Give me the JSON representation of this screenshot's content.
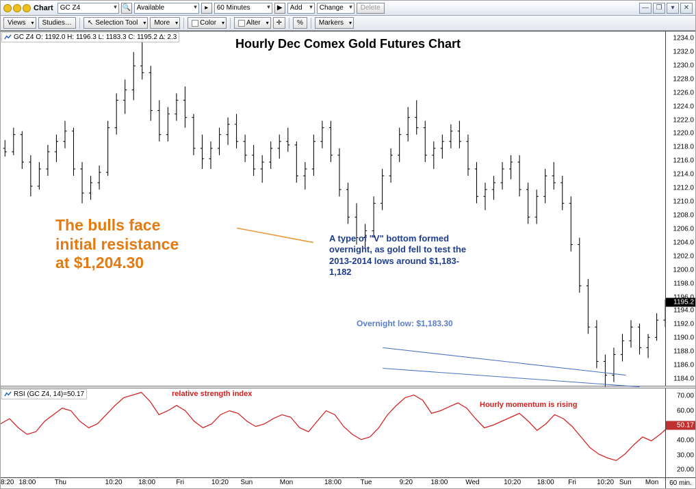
{
  "titlebar": {
    "label": "Chart",
    "symbol": "GC Z4",
    "availability": "Available",
    "interval": "60 Minutes",
    "add": "Add",
    "change": "Change",
    "delete": "Delete"
  },
  "toolbar": {
    "views": "Views",
    "studies": "Studies…",
    "selection": "Selection Tool",
    "more": "More",
    "color": "Color",
    "alter": "Alter",
    "percent": "%",
    "markers": "Markers"
  },
  "main_head": "GC Z4   O: 1192.0   H: 1196.3   L: 1183.3   C: 1195.2   ∆: 2.3",
  "rsi_head": "RSI (GC Z4, 14)=50.17",
  "chart_title": "Hourly Dec Comex Gold Futures Chart",
  "annotations": {
    "orange": "The bulls face\ninitial resistance\nat $1,204.30",
    "blue": "A type of \"V\" bottom formed\novernight, as gold fell to test the\n2013-2014 lows around $1,183-\n1,182",
    "blue2": "Overnight low: $1,183.30",
    "rsi1": "relative strength index",
    "rsi2": "Hourly momentum is rising"
  },
  "colors": {
    "bar": "#000000",
    "rsi_line": "#d42020",
    "anno_orange": "#e37a12",
    "anno_blue": "#1f3d8f",
    "trend_line": "#4a6fc4",
    "orange_line": "#e89a3a"
  },
  "main_chart": {
    "y_min": 1183.0,
    "y_max": 1235.0,
    "yticks": [
      1184.0,
      1186.0,
      1188.0,
      1190.0,
      1192.0,
      1194.0,
      1196.0,
      1198.0,
      1200.0,
      1202.0,
      1204.0,
      1206.0,
      1208.0,
      1210.0,
      1212.0,
      1214.0,
      1216.0,
      1218.0,
      1220.0,
      1222.0,
      1224.0,
      1226.0,
      1228.0,
      1230.0,
      1232.0,
      1234.0
    ],
    "last_price": 1195.2,
    "ohlc": [
      {
        "o": 1218.0,
        "h": 1219.2,
        "l": 1216.8,
        "c": 1217.5
      },
      {
        "o": 1217.5,
        "h": 1221.0,
        "l": 1217.0,
        "c": 1220.0
      },
      {
        "o": 1220.0,
        "h": 1220.5,
        "l": 1215.0,
        "c": 1216.0
      },
      {
        "o": 1216.0,
        "h": 1217.0,
        "l": 1211.0,
        "c": 1212.5
      },
      {
        "o": 1212.5,
        "h": 1216.0,
        "l": 1212.0,
        "c": 1215.0
      },
      {
        "o": 1215.0,
        "h": 1218.5,
        "l": 1214.0,
        "c": 1217.5
      },
      {
        "o": 1217.5,
        "h": 1220.0,
        "l": 1216.0,
        "c": 1219.0
      },
      {
        "o": 1219.0,
        "h": 1222.0,
        "l": 1218.0,
        "c": 1220.5
      },
      {
        "o": 1220.5,
        "h": 1221.0,
        "l": 1214.0,
        "c": 1215.0
      },
      {
        "o": 1215.0,
        "h": 1216.0,
        "l": 1210.0,
        "c": 1211.5
      },
      {
        "o": 1211.5,
        "h": 1214.0,
        "l": 1210.5,
        "c": 1213.0
      },
      {
        "o": 1213.0,
        "h": 1215.5,
        "l": 1212.0,
        "c": 1214.5
      },
      {
        "o": 1214.5,
        "h": 1222.0,
        "l": 1214.0,
        "c": 1221.0
      },
      {
        "o": 1221.0,
        "h": 1226.0,
        "l": 1220.0,
        "c": 1225.0
      },
      {
        "o": 1225.0,
        "h": 1228.0,
        "l": 1223.0,
        "c": 1226.5
      },
      {
        "o": 1226.5,
        "h": 1232.0,
        "l": 1225.0,
        "c": 1230.0
      },
      {
        "o": 1230.0,
        "h": 1234.5,
        "l": 1228.0,
        "c": 1229.0
      },
      {
        "o": 1229.0,
        "h": 1230.0,
        "l": 1222.0,
        "c": 1223.5
      },
      {
        "o": 1223.5,
        "h": 1225.0,
        "l": 1219.0,
        "c": 1220.0
      },
      {
        "o": 1220.0,
        "h": 1224.0,
        "l": 1219.0,
        "c": 1223.0
      },
      {
        "o": 1223.0,
        "h": 1226.0,
        "l": 1222.0,
        "c": 1225.0
      },
      {
        "o": 1225.0,
        "h": 1227.0,
        "l": 1221.0,
        "c": 1222.5
      },
      {
        "o": 1222.5,
        "h": 1223.0,
        "l": 1217.0,
        "c": 1218.0
      },
      {
        "o": 1218.0,
        "h": 1220.0,
        "l": 1215.0,
        "c": 1216.5
      },
      {
        "o": 1216.5,
        "h": 1219.0,
        "l": 1215.0,
        "c": 1218.0
      },
      {
        "o": 1218.0,
        "h": 1221.0,
        "l": 1217.0,
        "c": 1220.0
      },
      {
        "o": 1220.0,
        "h": 1222.5,
        "l": 1218.5,
        "c": 1221.5
      },
      {
        "o": 1221.5,
        "h": 1223.0,
        "l": 1218.0,
        "c": 1219.0
      },
      {
        "o": 1219.0,
        "h": 1220.0,
        "l": 1216.0,
        "c": 1217.0
      },
      {
        "o": 1217.0,
        "h": 1218.5,
        "l": 1214.0,
        "c": 1215.0
      },
      {
        "o": 1215.0,
        "h": 1217.0,
        "l": 1213.0,
        "c": 1216.0
      },
      {
        "o": 1216.0,
        "h": 1219.0,
        "l": 1215.0,
        "c": 1218.0
      },
      {
        "o": 1218.0,
        "h": 1220.0,
        "l": 1216.5,
        "c": 1219.0
      },
      {
        "o": 1219.0,
        "h": 1221.0,
        "l": 1217.5,
        "c": 1218.5
      },
      {
        "o": 1218.5,
        "h": 1219.0,
        "l": 1213.0,
        "c": 1214.0
      },
      {
        "o": 1214.0,
        "h": 1216.0,
        "l": 1212.0,
        "c": 1215.0
      },
      {
        "o": 1215.0,
        "h": 1220.0,
        "l": 1214.0,
        "c": 1219.0
      },
      {
        "o": 1219.0,
        "h": 1222.0,
        "l": 1218.0,
        "c": 1221.0
      },
      {
        "o": 1221.0,
        "h": 1222.0,
        "l": 1216.0,
        "c": 1217.0
      },
      {
        "o": 1217.0,
        "h": 1218.0,
        "l": 1211.0,
        "c": 1212.0
      },
      {
        "o": 1212.0,
        "h": 1213.0,
        "l": 1207.0,
        "c": 1208.0
      },
      {
        "o": 1208.0,
        "h": 1210.0,
        "l": 1204.0,
        "c": 1205.0
      },
      {
        "o": 1205.0,
        "h": 1207.0,
        "l": 1203.5,
        "c": 1206.0
      },
      {
        "o": 1206.0,
        "h": 1211.0,
        "l": 1205.0,
        "c": 1210.0
      },
      {
        "o": 1210.0,
        "h": 1215.0,
        "l": 1209.0,
        "c": 1214.0
      },
      {
        "o": 1214.0,
        "h": 1218.0,
        "l": 1213.0,
        "c": 1217.0
      },
      {
        "o": 1217.0,
        "h": 1221.0,
        "l": 1216.0,
        "c": 1220.0
      },
      {
        "o": 1220.0,
        "h": 1224.0,
        "l": 1219.0,
        "c": 1222.5
      },
      {
        "o": 1222.5,
        "h": 1225.0,
        "l": 1220.0,
        "c": 1221.0
      },
      {
        "o": 1221.0,
        "h": 1222.0,
        "l": 1216.0,
        "c": 1217.0
      },
      {
        "o": 1217.0,
        "h": 1219.0,
        "l": 1215.0,
        "c": 1218.0
      },
      {
        "o": 1218.0,
        "h": 1220.0,
        "l": 1216.5,
        "c": 1219.0
      },
      {
        "o": 1219.0,
        "h": 1221.5,
        "l": 1218.0,
        "c": 1220.5
      },
      {
        "o": 1220.5,
        "h": 1222.0,
        "l": 1218.0,
        "c": 1219.0
      },
      {
        "o": 1219.0,
        "h": 1220.0,
        "l": 1214.0,
        "c": 1215.0
      },
      {
        "o": 1215.0,
        "h": 1216.0,
        "l": 1210.0,
        "c": 1211.0
      },
      {
        "o": 1211.0,
        "h": 1213.0,
        "l": 1209.0,
        "c": 1212.0
      },
      {
        "o": 1212.0,
        "h": 1214.0,
        "l": 1210.5,
        "c": 1213.0
      },
      {
        "o": 1213.0,
        "h": 1216.0,
        "l": 1212.0,
        "c": 1215.0
      },
      {
        "o": 1215.0,
        "h": 1217.0,
        "l": 1213.5,
        "c": 1216.0
      },
      {
        "o": 1216.0,
        "h": 1217.0,
        "l": 1211.0,
        "c": 1212.0
      },
      {
        "o": 1212.0,
        "h": 1213.0,
        "l": 1207.0,
        "c": 1208.0
      },
      {
        "o": 1208.0,
        "h": 1212.0,
        "l": 1207.0,
        "c": 1211.0
      },
      {
        "o": 1211.0,
        "h": 1215.0,
        "l": 1210.0,
        "c": 1214.0
      },
      {
        "o": 1214.0,
        "h": 1216.0,
        "l": 1212.0,
        "c": 1213.0
      },
      {
        "o": 1213.0,
        "h": 1214.0,
        "l": 1209.0,
        "c": 1210.0
      },
      {
        "o": 1210.0,
        "h": 1211.0,
        "l": 1203.0,
        "c": 1204.0
      },
      {
        "o": 1204.0,
        "h": 1205.0,
        "l": 1197.0,
        "c": 1198.0
      },
      {
        "o": 1198.0,
        "h": 1199.0,
        "l": 1191.0,
        "c": 1192.0
      },
      {
        "o": 1192.0,
        "h": 1193.0,
        "l": 1186.0,
        "c": 1187.0
      },
      {
        "o": 1187.0,
        "h": 1188.0,
        "l": 1183.3,
        "c": 1185.0
      },
      {
        "o": 1185.0,
        "h": 1189.0,
        "l": 1184.0,
        "c": 1188.0
      },
      {
        "o": 1188.0,
        "h": 1191.0,
        "l": 1187.0,
        "c": 1190.0
      },
      {
        "o": 1190.0,
        "h": 1193.0,
        "l": 1189.0,
        "c": 1192.0
      },
      {
        "o": 1192.0,
        "h": 1192.5,
        "l": 1188.0,
        "c": 1189.0
      },
      {
        "o": 1189.0,
        "h": 1191.0,
        "l": 1187.5,
        "c": 1190.5
      },
      {
        "o": 1190.5,
        "h": 1194.0,
        "l": 1190.0,
        "c": 1193.0
      },
      {
        "o": 1193.0,
        "h": 1196.0,
        "l": 1192.0,
        "c": 1195.0
      },
      {
        "o": 1195.0,
        "h": 1197.0,
        "l": 1193.5,
        "c": 1196.0
      },
      {
        "o": 1196.0,
        "h": 1196.3,
        "l": 1193.0,
        "c": 1195.2
      }
    ]
  },
  "rsi_chart": {
    "y_min": 15,
    "y_max": 75,
    "yticks": [
      20.0,
      30.0,
      40.0,
      50.0,
      60.0,
      70.0
    ],
    "last_value": 50.17,
    "values": [
      48,
      52,
      45,
      40,
      42,
      50,
      55,
      60,
      58,
      50,
      45,
      48,
      55,
      62,
      68,
      70,
      72,
      65,
      55,
      58,
      62,
      58,
      50,
      45,
      48,
      55,
      58,
      56,
      50,
      46,
      48,
      52,
      55,
      53,
      45,
      42,
      50,
      58,
      55,
      46,
      40,
      36,
      38,
      45,
      55,
      62,
      68,
      70,
      66,
      56,
      58,
      61,
      64,
      60,
      52,
      45,
      47,
      50,
      53,
      56,
      50,
      43,
      48,
      55,
      52,
      46,
      38,
      30,
      25,
      22,
      20,
      25,
      32,
      38,
      35,
      40,
      46,
      52,
      57,
      50
    ]
  },
  "xaxis": {
    "ticks": [
      {
        "pct": 0,
        "label": "8:20",
        "align": "left"
      },
      {
        "pct": 4,
        "label": "18:00"
      },
      {
        "pct": 9,
        "label": "Thu"
      },
      {
        "pct": 17,
        "label": "10:20"
      },
      {
        "pct": 22,
        "label": "18:00"
      },
      {
        "pct": 27,
        "label": "Fri"
      },
      {
        "pct": 33,
        "label": "10:20"
      },
      {
        "pct": 37,
        "label": "Sun"
      },
      {
        "pct": 43,
        "label": "Mon"
      },
      {
        "pct": 50,
        "label": "18:00"
      },
      {
        "pct": 55,
        "label": "Tue"
      },
      {
        "pct": 61,
        "label": "9:20"
      },
      {
        "pct": 66,
        "label": "18:00"
      },
      {
        "pct": 71,
        "label": "Wed"
      },
      {
        "pct": 77,
        "label": "10:20"
      },
      {
        "pct": 82,
        "label": "18:00"
      },
      {
        "pct": 86,
        "label": "Fri"
      },
      {
        "pct": 91,
        "label": "10:20"
      },
      {
        "pct": 94,
        "label": "Sun"
      },
      {
        "pct": 98,
        "label": "Mon"
      }
    ],
    "corner_label": "60 min."
  }
}
